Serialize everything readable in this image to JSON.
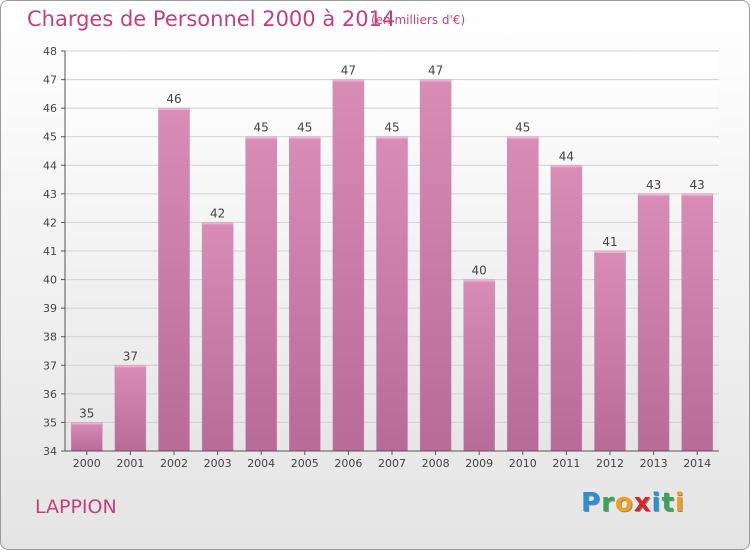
{
  "header": {
    "title": "Charges de Personnel 2000 à 2014",
    "subtitle": "(en milliers d'€)"
  },
  "commune": "LAPPION",
  "logo": {
    "text": "Proxiti",
    "letters": [
      {
        "char": "P",
        "color": "#2b8fd6"
      },
      {
        "char": "r",
        "color": "#3aa55a"
      },
      {
        "char": "o",
        "color": "#f0a21c"
      },
      {
        "char": "x",
        "color": "#d9262b"
      },
      {
        "char": "i",
        "color": "#2b8fd6"
      },
      {
        "char": "t",
        "color": "#3aa55a"
      },
      {
        "char": "i",
        "color": "#f0a21c"
      }
    ]
  },
  "chart_data": {
    "type": "bar",
    "categories": [
      "2000",
      "2001",
      "2002",
      "2003",
      "2004",
      "2005",
      "2006",
      "2007",
      "2008",
      "2009",
      "2010",
      "2011",
      "2012",
      "2013",
      "2014"
    ],
    "values": [
      35,
      37,
      46,
      42,
      45,
      45,
      47,
      45,
      47,
      40,
      45,
      44,
      41,
      43,
      43
    ],
    "ylim": [
      34,
      48
    ],
    "yticks": [
      34,
      35,
      36,
      37,
      38,
      39,
      40,
      41,
      42,
      43,
      44,
      45,
      46,
      47,
      48
    ],
    "grid": true,
    "bar_color": "#d98cb6",
    "bar_color_dark": "#b86b97",
    "axis_color": "#555555"
  }
}
